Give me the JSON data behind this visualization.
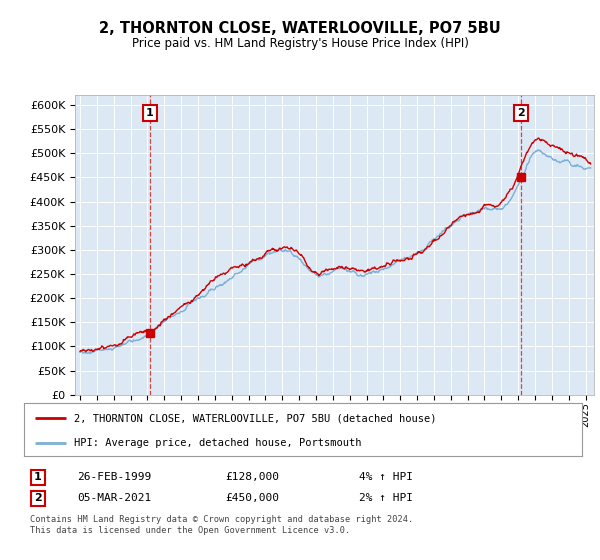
{
  "title": "2, THORNTON CLOSE, WATERLOOVILLE, PO7 5BU",
  "subtitle": "Price paid vs. HM Land Registry's House Price Index (HPI)",
  "background_color": "#dde8f5",
  "plot_bg_color": "#dde8f5",
  "ylim": [
    0,
    620000
  ],
  "yticks": [
    0,
    50000,
    100000,
    150000,
    200000,
    250000,
    300000,
    350000,
    400000,
    450000,
    500000,
    550000,
    600000
  ],
  "xlim_start": 1994.7,
  "xlim_end": 2025.5,
  "sale1_date": 1999.15,
  "sale1_price": 128000,
  "sale1_label": "1",
  "sale2_date": 2021.17,
  "sale2_price": 450000,
  "sale2_label": "2",
  "red_line_color": "#cc0000",
  "blue_line_color": "#7bafd4",
  "vline_color": "#cc0000",
  "legend_label_red": "2, THORNTON CLOSE, WATERLOOVILLE, PO7 5BU (detached house)",
  "legend_label_blue": "HPI: Average price, detached house, Portsmouth",
  "table_row1_label": "1",
  "table_row1_date": "26-FEB-1999",
  "table_row1_price": "£128,000",
  "table_row1_hpi": "4% ↑ HPI",
  "table_row2_label": "2",
  "table_row2_date": "05-MAR-2021",
  "table_row2_price": "£450,000",
  "table_row2_hpi": "2% ↑ HPI",
  "footnote": "Contains HM Land Registry data © Crown copyright and database right 2024.\nThis data is licensed under the Open Government Licence v3.0.",
  "xtick_years": [
    1995,
    1996,
    1997,
    1998,
    1999,
    2000,
    2001,
    2002,
    2003,
    2004,
    2005,
    2006,
    2007,
    2008,
    2009,
    2010,
    2011,
    2012,
    2013,
    2014,
    2015,
    2016,
    2017,
    2018,
    2019,
    2020,
    2021,
    2022,
    2023,
    2024,
    2025
  ],
  "hpi_knots_x": [
    1995,
    1996,
    1997,
    1998,
    1999,
    2000,
    2001,
    2002,
    2003,
    2004,
    2005,
    2006,
    2007,
    2008,
    2009,
    2010,
    2011,
    2012,
    2013,
    2014,
    2015,
    2016,
    2017,
    2018,
    2019,
    2020,
    2021,
    2022,
    2023,
    2024,
    2025
  ],
  "hpi_knots_y": [
    88000,
    92000,
    97000,
    108000,
    122000,
    148000,
    172000,
    198000,
    225000,
    248000,
    268000,
    285000,
    302000,
    285000,
    250000,
    255000,
    260000,
    258000,
    265000,
    278000,
    295000,
    318000,
    345000,
    365000,
    375000,
    385000,
    430000,
    500000,
    490000,
    480000,
    475000
  ],
  "red_knots_y": [
    90000,
    95000,
    100000,
    113000,
    128000,
    156000,
    182000,
    210000,
    238000,
    260000,
    278000,
    295000,
    315000,
    295000,
    258000,
    262000,
    268000,
    265000,
    272000,
    285000,
    302000,
    328000,
    358000,
    378000,
    390000,
    400000,
    450000,
    530000,
    515000,
    500000,
    490000
  ]
}
